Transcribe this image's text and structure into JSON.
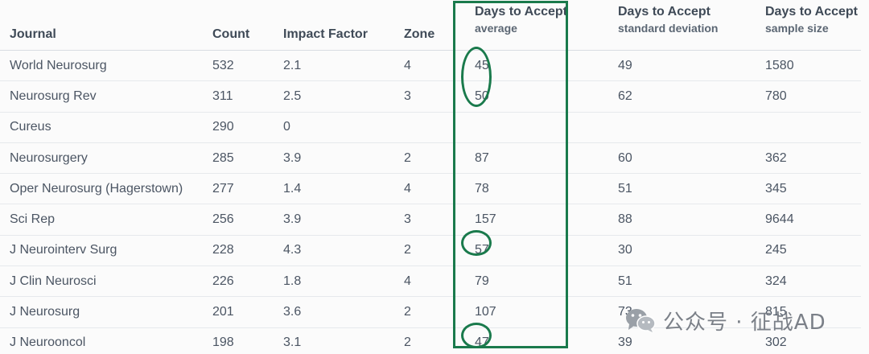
{
  "table": {
    "headers": {
      "journal": "Journal",
      "count": "Count",
      "impact_factor": "Impact Factor",
      "zone": "Zone",
      "avg_top": "Days to Accept",
      "avg_sub": "average",
      "sd_top": "Days to Accept",
      "sd_sub": "standard deviation",
      "n_top": "Days to Accept",
      "n_sub": "sample size"
    },
    "rows": [
      {
        "journal": "World Neurosurg",
        "count": "532",
        "impact_factor": "2.1",
        "zone": "4",
        "avg": "45",
        "sd": "49",
        "n": "1580"
      },
      {
        "journal": "Neurosurg Rev",
        "count": "311",
        "impact_factor": "2.5",
        "zone": "3",
        "avg": "50",
        "sd": "62",
        "n": "780"
      },
      {
        "journal": "Cureus",
        "count": "290",
        "impact_factor": "0",
        "zone": "",
        "avg": "",
        "sd": "",
        "n": ""
      },
      {
        "journal": "Neurosurgery",
        "count": "285",
        "impact_factor": "3.9",
        "zone": "2",
        "avg": "87",
        "sd": "60",
        "n": "362"
      },
      {
        "journal": "Oper Neurosurg (Hagerstown)",
        "count": "277",
        "impact_factor": "1.4",
        "zone": "4",
        "avg": "78",
        "sd": "51",
        "n": "345"
      },
      {
        "journal": "Sci Rep",
        "count": "256",
        "impact_factor": "3.9",
        "zone": "3",
        "avg": "157",
        "sd": "88",
        "n": "9644"
      },
      {
        "journal": "J Neurointerv Surg",
        "count": "228",
        "impact_factor": "4.3",
        "zone": "2",
        "avg": "57",
        "sd": "30",
        "n": "245"
      },
      {
        "journal": "J Clin Neurosci",
        "count": "226",
        "impact_factor": "1.8",
        "zone": "4",
        "avg": "79",
        "sd": "51",
        "n": "324"
      },
      {
        "journal": "J Neurosurg",
        "count": "201",
        "impact_factor": "3.6",
        "zone": "2",
        "avg": "107",
        "sd": "73",
        "n": "815"
      },
      {
        "journal": "J Neurooncol",
        "count": "198",
        "impact_factor": "3.1",
        "zone": "2",
        "avg": "47",
        "sd": "39",
        "n": "302"
      }
    ]
  },
  "annotations": {
    "color": "#1a7a4c"
  },
  "watermark": {
    "icon": "wechat-icon",
    "text": "公众号 · 征战AD"
  }
}
